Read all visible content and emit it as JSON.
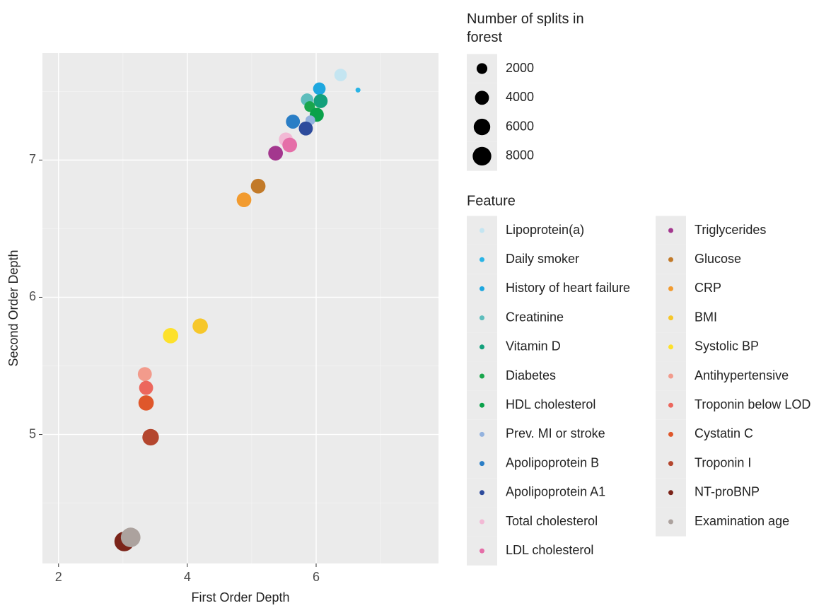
{
  "chart_data": {
    "type": "scatter",
    "xlabel": "First Order Depth",
    "ylabel": "Second Order Depth",
    "xlim": [
      1.75,
      7.9
    ],
    "ylim": [
      4.06,
      7.78
    ],
    "xticks": [
      2,
      4,
      6
    ],
    "yticks": [
      5,
      6,
      7
    ],
    "grid": true,
    "size_legend_title": "Number of splits in forest",
    "size_legend_values": [
      2000,
      4000,
      6000,
      8000
    ],
    "color_legend_title": "Feature",
    "series": [
      {
        "name": "Lipoprotein(a)",
        "color": "#c4e5f1",
        "x": [
          6.38
        ],
        "values": [
          7.62
        ],
        "sizes": [
          3000
        ]
      },
      {
        "name": "Daily smoker",
        "color": "#29b4e6",
        "x": [
          6.65
        ],
        "values": [
          7.51
        ],
        "sizes": [
          150
        ]
      },
      {
        "name": "History of heart failure",
        "color": "#1ea7df",
        "x": [
          6.05
        ],
        "values": [
          7.52
        ],
        "sizes": [
          3000
        ]
      },
      {
        "name": "Creatinine",
        "color": "#5dbdbc",
        "x": [
          5.86
        ],
        "values": [
          7.44
        ],
        "sizes": [
          3000
        ]
      },
      {
        "name": "Vitamin D",
        "color": "#13a07b",
        "x": [
          6.07
        ],
        "values": [
          7.43
        ],
        "sizes": [
          4000
        ]
      },
      {
        "name": "Diabetes",
        "color": "#19a64c",
        "x": [
          5.9
        ],
        "values": [
          7.39
        ],
        "sizes": [
          2000
        ]
      },
      {
        "name": "HDL cholesterol",
        "color": "#0aa14a",
        "x": [
          6.01
        ],
        "values": [
          7.33
        ],
        "sizes": [
          4000
        ]
      },
      {
        "name": "Prev. MI or stroke",
        "color": "#93b2de",
        "x": [
          5.91
        ],
        "values": [
          7.29
        ],
        "sizes": [
          1500
        ]
      },
      {
        "name": "Apolipoprotein B",
        "color": "#2a7ec6",
        "x": [
          5.64
        ],
        "values": [
          7.28
        ],
        "sizes": [
          4000
        ]
      },
      {
        "name": "Apolipoprotein A1",
        "color": "#2d4b9c",
        "x": [
          5.84
        ],
        "values": [
          7.23
        ],
        "sizes": [
          4000
        ]
      },
      {
        "name": "Total cholesterol",
        "color": "#f2b9d5",
        "x": [
          5.53
        ],
        "values": [
          7.15
        ],
        "sizes": [
          4000
        ]
      },
      {
        "name": "LDL cholesterol",
        "color": "#e56ea8",
        "x": [
          5.59
        ],
        "values": [
          7.11
        ],
        "sizes": [
          4500
        ]
      },
      {
        "name": "Triglycerides",
        "color": "#a3378e",
        "x": [
          5.37
        ],
        "values": [
          7.05
        ],
        "sizes": [
          4500
        ]
      },
      {
        "name": "Glucose",
        "color": "#c27a29",
        "x": [
          5.1
        ],
        "values": [
          6.81
        ],
        "sizes": [
          4500
        ]
      },
      {
        "name": "CRP",
        "color": "#f29b2f",
        "x": [
          4.88
        ],
        "values": [
          6.71
        ],
        "sizes": [
          4500
        ]
      },
      {
        "name": "BMI",
        "color": "#f6c72a",
        "x": [
          4.2
        ],
        "values": [
          5.79
        ],
        "sizes": [
          5000
        ]
      },
      {
        "name": "Systolic BP",
        "color": "#fde12b",
        "x": [
          3.74
        ],
        "values": [
          5.72
        ],
        "sizes": [
          5000
        ]
      },
      {
        "name": "Antihypertensive",
        "color": "#f29b8c",
        "x": [
          3.34
        ],
        "values": [
          5.44
        ],
        "sizes": [
          4000
        ]
      },
      {
        "name": "Troponin below LOD",
        "color": "#ec675d",
        "x": [
          3.36
        ],
        "values": [
          5.34
        ],
        "sizes": [
          4000
        ]
      },
      {
        "name": "Cystatin C",
        "color": "#df572b",
        "x": [
          3.36
        ],
        "values": [
          5.23
        ],
        "sizes": [
          5000
        ]
      },
      {
        "name": "Troponin I",
        "color": "#b4462e",
        "x": [
          3.43
        ],
        "values": [
          4.98
        ],
        "sizes": [
          6000
        ]
      },
      {
        "name": "NT-proBNP",
        "color": "#7b2419",
        "x": [
          3.02
        ],
        "values": [
          4.22
        ],
        "sizes": [
          9000
        ]
      },
      {
        "name": "Examination age",
        "color": "#aca29e",
        "x": [
          3.12
        ],
        "values": [
          4.25
        ],
        "sizes": [
          9000
        ]
      }
    ]
  }
}
